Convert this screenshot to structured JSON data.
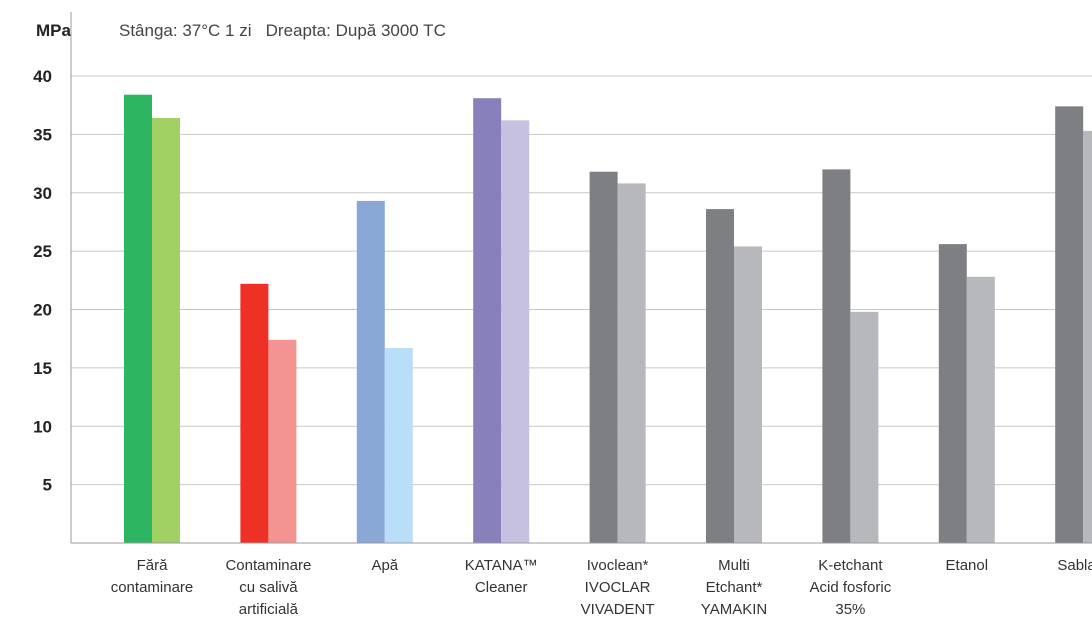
{
  "chart_data": {
    "type": "bar",
    "ylabel": "MPa",
    "legend_text": "Stânga: 37°C 1 zi   Dreapta: După 3000 TC",
    "legend_placement": "top-left",
    "ylim": [
      0,
      40
    ],
    "yticks": [
      5,
      10,
      15,
      20,
      25,
      30,
      35,
      40
    ],
    "grid": true,
    "categories": [
      [
        "Fără",
        "contaminare"
      ],
      [
        "Contaminare",
        "cu salivă",
        "artificială"
      ],
      [
        "Apă"
      ],
      [
        "KATANA™",
        "Cleaner"
      ],
      [
        "Ivoclean*",
        "IVOCLAR",
        "VIVADENT"
      ],
      [
        "Multi",
        "Etchant*",
        "YAMAKIN"
      ],
      [
        "K-etchant",
        "Acid fosforic",
        "35%"
      ],
      [
        "Etanol"
      ],
      [
        "Sablare"
      ]
    ],
    "series": [
      {
        "values": [
          38.4,
          22.2,
          29.3,
          38.1,
          31.8,
          28.6,
          32.0,
          25.6,
          37.4
        ],
        "colors": [
          "#2db562",
          "#ee3124",
          "#8aa8d6",
          "#8880bb",
          "#7e7f83",
          "#7e7f83",
          "#7e7f83",
          "#7e7f83",
          "#7e7f83"
        ]
      },
      {
        "values": [
          36.4,
          17.4,
          16.7,
          36.2,
          30.8,
          25.4,
          19.8,
          22.8,
          35.3
        ],
        "colors": [
          "#a1d063",
          "#f39492",
          "#b9def7",
          "#c6c1e0",
          "#b7b8bc",
          "#b7b8bc",
          "#b7b8bc",
          "#b7b8bc",
          "#b7b8bc"
        ]
      }
    ]
  }
}
